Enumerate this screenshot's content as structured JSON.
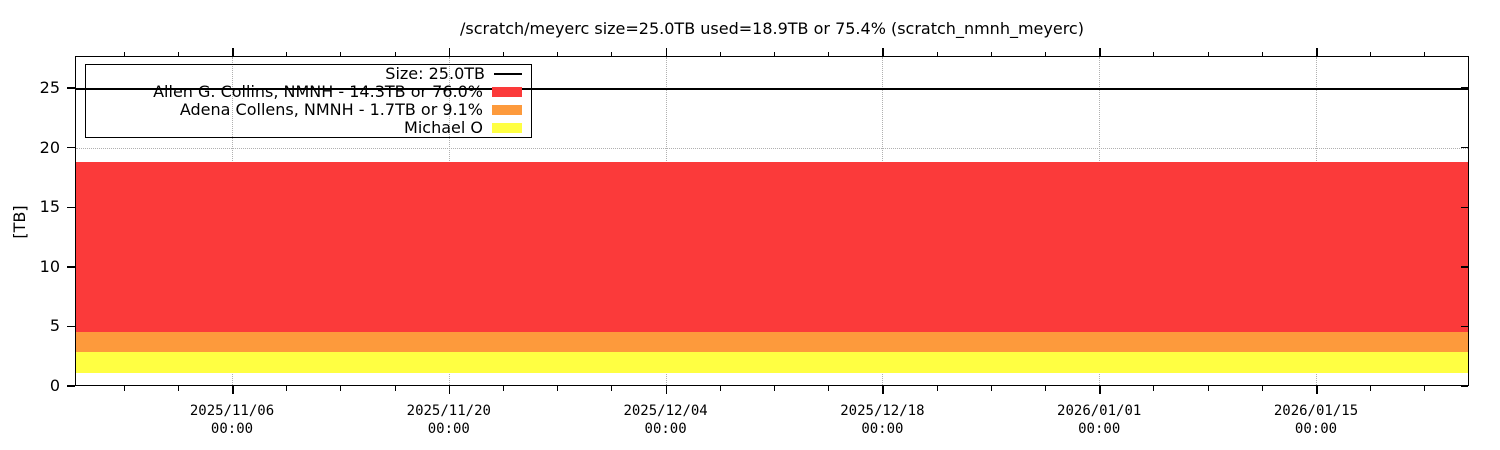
{
  "title": "/scratch/meyerc size=25.0TB used=18.9TB or 75.4% (scratch_nmnh_meyerc)",
  "y_axis": {
    "label": "[TB]",
    "ticks": [
      0,
      5,
      10,
      15,
      20,
      25
    ]
  },
  "x_axis": {
    "major_ticks": [
      {
        "date": "2025/11/06",
        "time": "00:00"
      },
      {
        "date": "2025/11/20",
        "time": "00:00"
      },
      {
        "date": "2025/12/04",
        "time": "00:00"
      },
      {
        "date": "2025/12/18",
        "time": "00:00"
      },
      {
        "date": "2026/01/01",
        "time": "00:00"
      },
      {
        "date": "2026/01/15",
        "time": "00:00"
      }
    ]
  },
  "legend": {
    "entries": [
      {
        "label": "Size: 25.0TB",
        "sample": "line",
        "color": "#000000"
      },
      {
        "label": "Allen G. Collins, NMNH - 14.3TB or 76.0%",
        "sample": "swatch",
        "color": "#fb3a3a"
      },
      {
        "label": "Adena Collens, NMNH - 1.7TB or 9.1%",
        "sample": "swatch",
        "color": "#fd9a3c"
      },
      {
        "label": "Michael O",
        "sample": "swatch",
        "color": "#ffff42"
      }
    ]
  },
  "chart_data": {
    "type": "area",
    "title": "/scratch/meyerc size=25.0TB used=18.9TB or 75.4% (scratch_nmnh_meyerc)",
    "xlabel": "",
    "ylabel": "[TB]",
    "ylim": [
      0,
      27.7
    ],
    "yticks": [
      0,
      5,
      10,
      15,
      20,
      25
    ],
    "x_tick_labels": [
      "2025/11/06 00:00",
      "2025/11/20 00:00",
      "2025/12/04 00:00",
      "2025/12/18 00:00",
      "2026/01/01 00:00",
      "2026/01/15 00:00"
    ],
    "grid": true,
    "legend_position": "top-left-inside",
    "filesystem": {
      "path": "/scratch/meyerc",
      "size_tb": 25.0,
      "used_tb": 18.9,
      "used_percent": 75.4,
      "volume": "scratch_nmnh_meyerc"
    },
    "size_line": {
      "label": "Size: 25.0TB",
      "value_tb": 25.0,
      "color": "#000000"
    },
    "series": [
      {
        "name": "Allen G. Collins, NMNH",
        "legend_label": "Allen G. Collins, NMNH - 14.3TB or 76.0%",
        "used_tb": 14.3,
        "used_percent": 76.0,
        "color": "#fb3a3a",
        "band_from_tb": 4.6,
        "band_to_tb": 18.9,
        "shape": "flat"
      },
      {
        "name": "Adena Collens, NMNH",
        "legend_label": "Adena Collens, NMNH - 1.7TB or 9.1%",
        "used_tb": 1.7,
        "used_percent": 9.1,
        "color": "#fd9a3c",
        "band_from_tb": 2.9,
        "band_to_tb": 4.6,
        "shape": "flat"
      },
      {
        "name": "Michael O",
        "legend_label": "Michael O",
        "color": "#ffff42",
        "band_from_tb": 1.2,
        "band_to_tb": 2.9,
        "shape": "flat"
      }
    ],
    "unlabeled_band": {
      "band_from_tb": 0.0,
      "band_to_tb": 1.2,
      "color": null
    }
  }
}
